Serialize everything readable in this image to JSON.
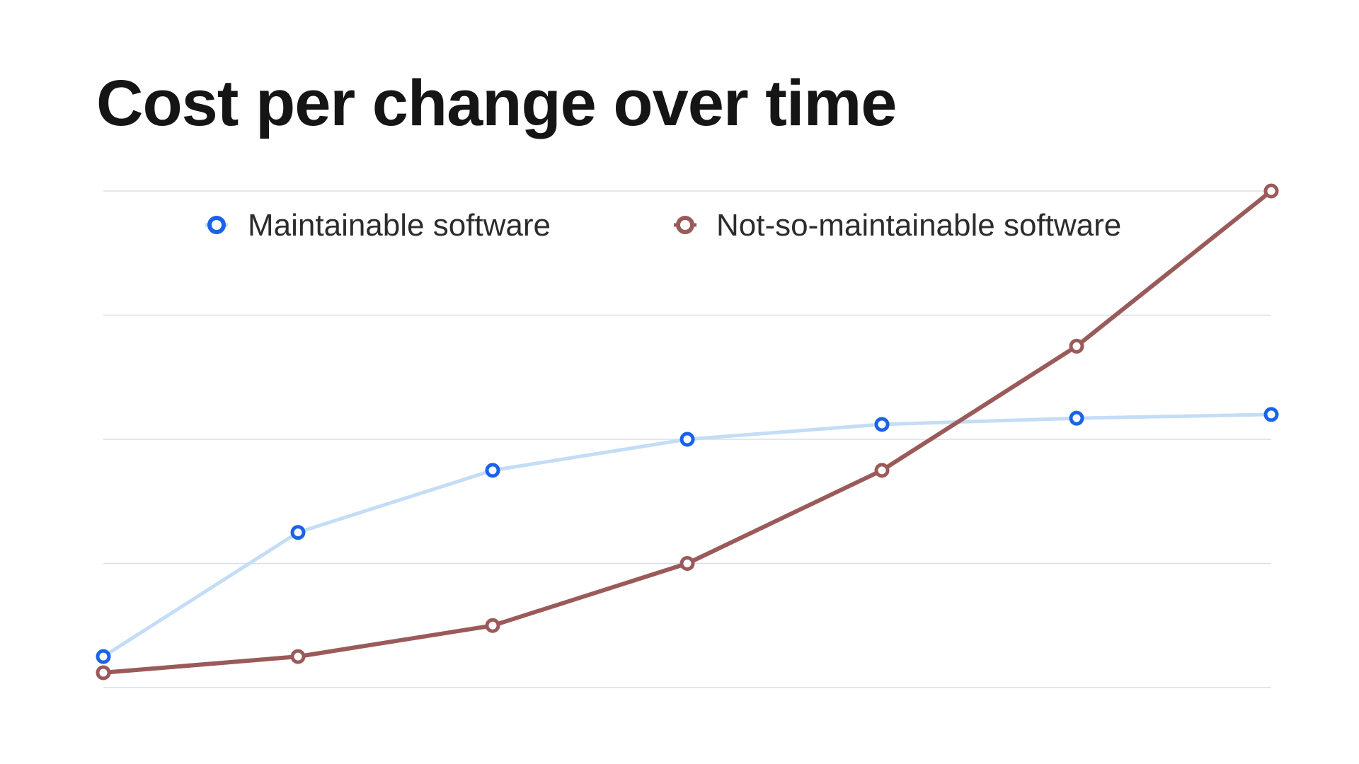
{
  "title": "Cost per change over time",
  "chart_data": {
    "type": "line",
    "title": "Cost per change over time",
    "xlabel": "",
    "ylabel": "",
    "x": [
      1,
      2,
      3,
      4,
      5,
      6,
      7
    ],
    "ylim": [
      0,
      4
    ],
    "grid": true,
    "axis_tick_labels_shown": false,
    "legend_placement": "top",
    "series": [
      {
        "name": "Maintainable software",
        "values": [
          0.25,
          1.25,
          1.75,
          2.0,
          2.12,
          2.17,
          2.2
        ],
        "line_color": "#c4ddf6",
        "marker_color": "#1a63e8"
      },
      {
        "name": "Not-so-maintainable software",
        "values": [
          0.12,
          0.25,
          0.5,
          1.0,
          1.75,
          2.75,
          4.0
        ],
        "line_color": "#9b5a5a",
        "marker_color": "#9b5a5a"
      }
    ]
  }
}
